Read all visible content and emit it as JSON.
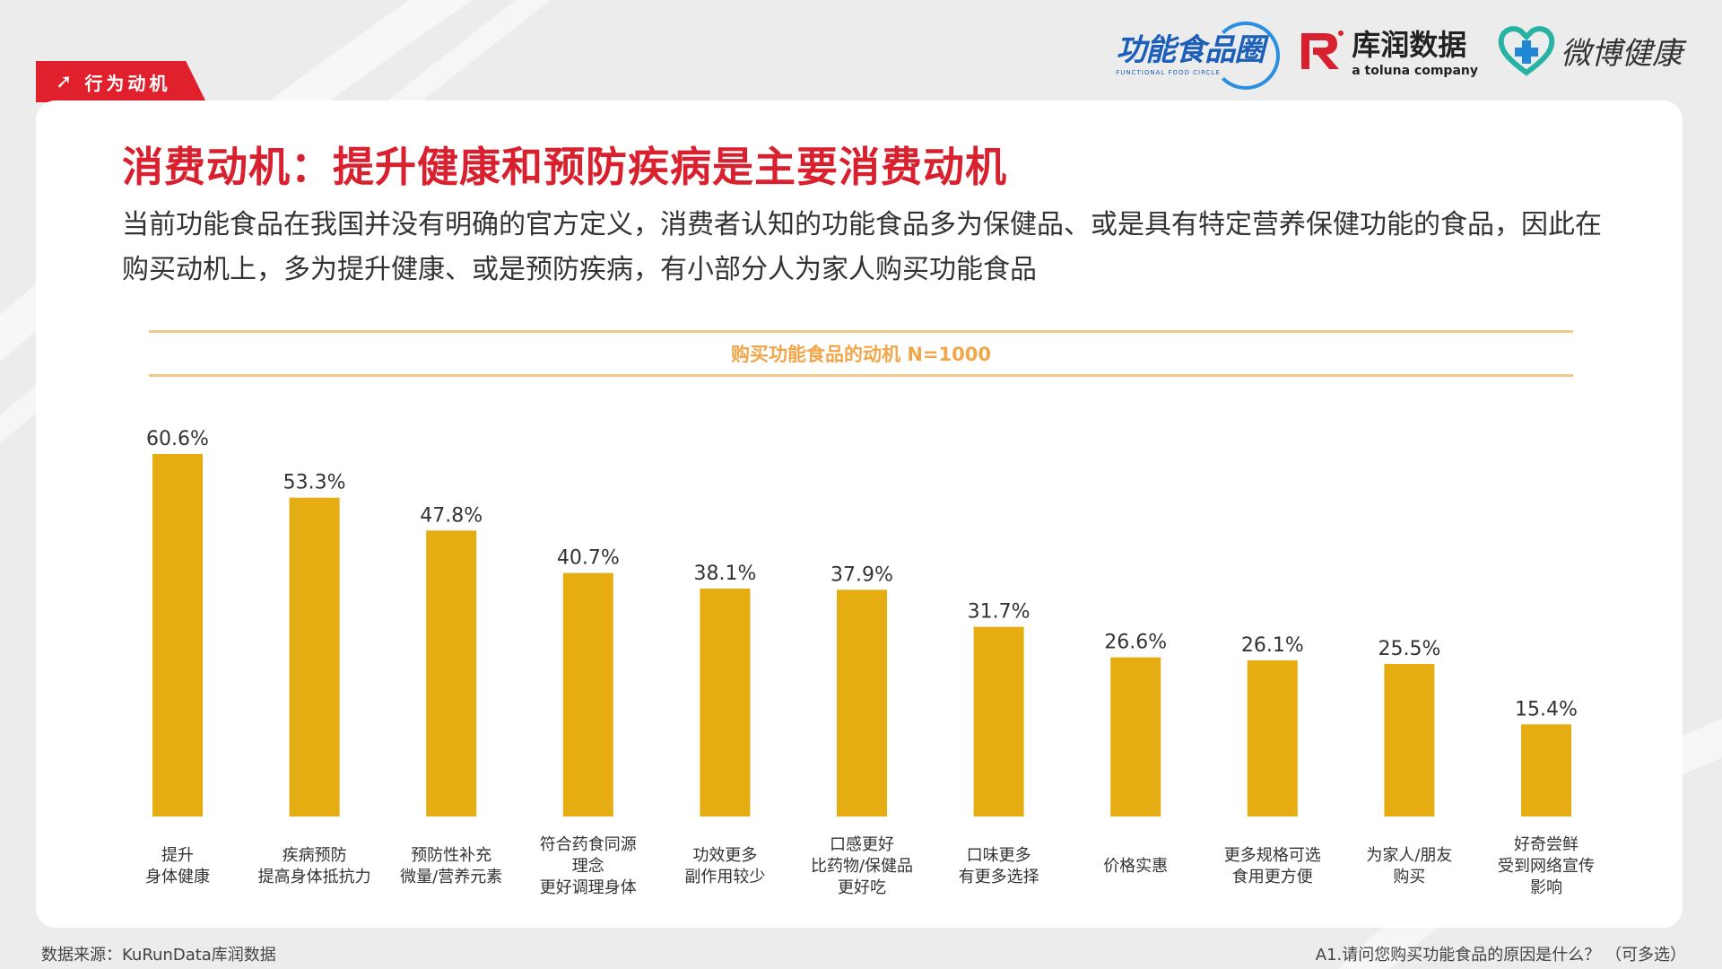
{
  "tag": {
    "label": "行为动机"
  },
  "logos": {
    "functional_food": {
      "name": "功能食品圈",
      "sub": "FUNCTIONAL FOOD CIRCLE"
    },
    "kurun": {
      "name": "库润数据",
      "sub": "a toluna company"
    },
    "weibo": {
      "name": "微博健康"
    }
  },
  "title": "消费动机：提升健康和预防疾病是主要消费动机",
  "description": "当前功能食品在我国并没有明确的官方定义，消费者认知的功能食品多为保健品、或是具有特定营养保健功能的食品，因此在购买动机上，多为提升健康、或是预防疾病，有小部分人为家人购买功能食品",
  "footer": {
    "source": "数据来源：KuRunData库润数据",
    "question": "A1.请问您购买功能食品的原因是什么？ （可多选）"
  },
  "colors": {
    "accent": "#d8202e",
    "bar": "#e6ad12",
    "band": "#f2a64a"
  },
  "chart_data": {
    "type": "bar",
    "title": "购买功能食品的动机 N=1000",
    "categories": [
      [
        "提升",
        "身体健康"
      ],
      [
        "疾病预防",
        "提高身体抵抗力"
      ],
      [
        "预防性补充",
        "微量/营养元素"
      ],
      [
        "符合药食同源",
        "理念",
        "更好调理身体"
      ],
      [
        "功效更多",
        "副作用较少"
      ],
      [
        "口感更好",
        "比药物/保健品",
        "更好吃"
      ],
      [
        "口味更多",
        "有更多选择"
      ],
      [
        "价格实惠"
      ],
      [
        "更多规格可选",
        "食用更方便"
      ],
      [
        "为家人/朋友",
        "购买"
      ],
      [
        "好奇尝鲜",
        "受到网络宣传",
        "影响"
      ]
    ],
    "values": [
      60.6,
      53.3,
      47.8,
      40.7,
      38.1,
      37.9,
      31.7,
      26.6,
      26.1,
      25.5,
      15.4
    ],
    "value_labels": [
      "60.6%",
      "53.3%",
      "47.8%",
      "40.7%",
      "38.1%",
      "37.9%",
      "31.7%",
      "26.6%",
      "26.1%",
      "25.5%",
      "15.4%"
    ],
    "unit": "%",
    "ylim": [
      0,
      60.6
    ],
    "grid": false,
    "legend": "none"
  }
}
